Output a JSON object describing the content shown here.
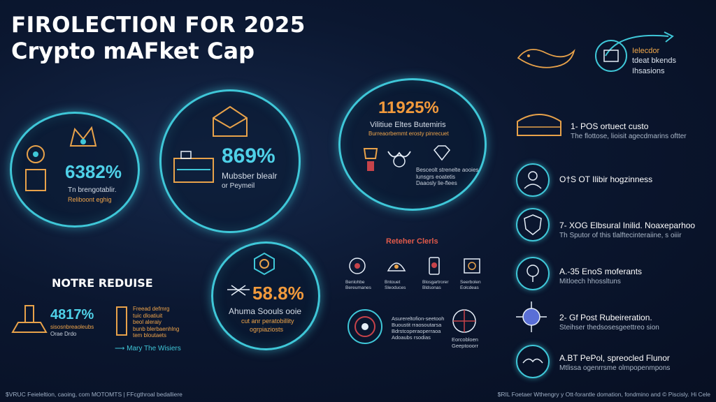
{
  "title": {
    "line1": "FIROLECTION FOR 2025",
    "line2": "Crypto mAFket Cap"
  },
  "top_right": {
    "line1": "Ielecdor",
    "line2": "tdeat bkends",
    "line3": "Ihsasions"
  },
  "bubble1": {
    "value": "6382%",
    "label1": "Tn brengotablir.",
    "label2": "Reliboont eghig"
  },
  "bubble2": {
    "value": "869%",
    "label1": "Mubsber blealr",
    "label2": "or Peymeil"
  },
  "bubble3": {
    "value": "11925%",
    "label1": "Vilitiue Eltes Butemiris",
    "label2": "Burreaorbemmt erosty pinrecuet"
  },
  "bubble4": {
    "value": "58.8%",
    "label1": "Ahuma Soouls ooie",
    "label2": "cut anr peratobillity",
    "label3": "ogrpiaziosts"
  },
  "bubble3_captions": [
    "Besceolt strenelte aooies",
    "lunsgrs eoatetis",
    "Daaosly lie-flees"
  ],
  "center_heading": "Reteher Clerls",
  "center_icons": [
    {
      "caption": "Benlohbe Bereumanes"
    },
    {
      "caption": "Bntouet Sleoduces"
    },
    {
      "caption": "Blosgartrorer Bldsonas"
    },
    {
      "caption": "Seerbolen Eolcdeas"
    }
  ],
  "center_bottom": {
    "list1": [
      "Asurereltofion-seetooh",
      "Buoustit rraosoutarsa",
      "Bdrstcoperaoperraoa",
      "Adoaubs rsodias"
    ],
    "cap2": [
      "Eorcobloen",
      "Geeptooorr"
    ]
  },
  "notre": {
    "heading": "NOTRE REDUISE",
    "value": "4817%",
    "small1": "sisosnbreaoleubs",
    "small2": "Orae Drdo",
    "list": [
      "Freead defmrg",
      "tuic dloatiuit",
      "beol aleraiy",
      "bunb blerbaenhlng",
      "tem bloutaets"
    ],
    "link": "Mary The Wisiers"
  },
  "right_list": [
    {
      "title": "1- POS ortuect custo",
      "sub": "The flottose, lioisit agecdmarins oftter"
    },
    {
      "title": "O†S OT Ilibir hogzinness",
      "sub": ""
    },
    {
      "title": "7- XOG Elbsural Inilid. Noaxeparhoo",
      "sub": "Th Sputor of this tlalftecinteraiine, s oiiir"
    },
    {
      "title": "A.-35 EnoS moferants",
      "sub": "Mitloech hhossltuns"
    },
    {
      "title": "2- Gf Post Rubeireration.",
      "sub": "Steihser thedsosesgeettreo sion"
    },
    {
      "title": "A.BT PePol, spreocled Flunor",
      "sub": "Mtlissa ogenrrsme olmpopenmpons"
    }
  ],
  "footer": {
    "left": "$VRUC Feieleltion, caoing, com MOTOMTS | FFcgthroal bedalliere",
    "right": "$RIL Foetaer Wthengry y Ott-forantle domation, fondmino and © Piscisly. Hi Cele"
  },
  "colors": {
    "accent": "#3fc7d8",
    "orange": "#f29a3c",
    "bg": "#0b1730"
  }
}
